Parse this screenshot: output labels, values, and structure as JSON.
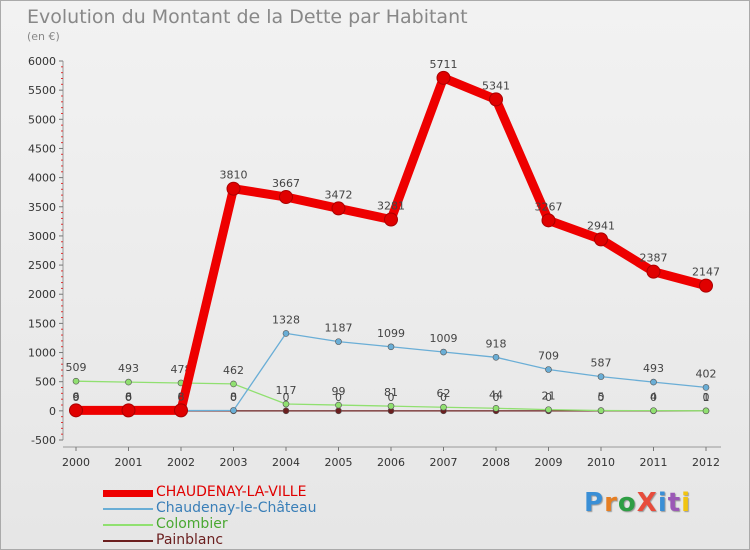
{
  "title": "Evolution du Montant de la Dette par Habitant",
  "subtitle": "(en €)",
  "logo": {
    "text": "ProXiti",
    "colors": [
      "#3a8fd6",
      "#e67e22",
      "#2e9e44",
      "#e74c3c",
      "#3a8fd6",
      "#9b59b6",
      "#f1c40f"
    ]
  },
  "chart_data": {
    "type": "line",
    "title": "Evolution du Montant de la Dette par Habitant",
    "ylabel": "(en €)",
    "xlabel": "",
    "categories": [
      "2000",
      "2001",
      "2002",
      "2003",
      "2004",
      "2005",
      "2006",
      "2007",
      "2008",
      "2009",
      "2010",
      "2011",
      "2012"
    ],
    "ylim": [
      -500,
      6000
    ],
    "yticks": [
      -500,
      0,
      500,
      1000,
      1500,
      2000,
      2500,
      3000,
      3500,
      4000,
      4500,
      5000,
      5500,
      6000
    ],
    "grid": false,
    "legend_position": "bottom-left",
    "series": [
      {
        "name": "Painblanc",
        "color": "#6b1f1f",
        "values": [
          0,
          0,
          0,
          0,
          0,
          0,
          0,
          0,
          0,
          0,
          0,
          0,
          0
        ],
        "labels": [
          "0",
          "0",
          "0",
          "0",
          "0",
          "0",
          "0",
          "0",
          "0",
          "0",
          "0",
          "0",
          "0"
        ]
      },
      {
        "name": "Colombier",
        "color": "#90e070",
        "values": [
          509,
          493,
          478,
          462,
          117,
          99,
          81,
          62,
          44,
          21,
          5,
          4,
          1
        ],
        "labels": [
          "509",
          "493",
          "478",
          "462",
          "117",
          "99",
          "81",
          "62",
          "44",
          "21",
          "5",
          "4",
          "1"
        ]
      },
      {
        "name": "Chaudenay-le-Château",
        "color": "#6aaed6",
        "values": [
          6,
          6,
          6,
          8,
          1328,
          1187,
          1099,
          1009,
          918,
          709,
          587,
          493,
          402
        ],
        "labels": [
          "6",
          "6",
          "6",
          "8",
          "1328",
          "1187",
          "1099",
          "1009",
          "918",
          "709",
          "587",
          "493",
          "402"
        ]
      },
      {
        "name": "CHAUDENAY-LA-VILLE",
        "color": "#ee0000",
        "values": [
          9,
          8,
          8,
          3810,
          3667,
          3472,
          3281,
          5711,
          5341,
          3267,
          2941,
          2387,
          2147
        ],
        "labels": [
          "9",
          "8",
          "8",
          "3810",
          "3667",
          "3472",
          "3281",
          "5711",
          "5341",
          "3267",
          "2941",
          "2387",
          "2147"
        ]
      }
    ],
    "legend_order": [
      "CHAUDENAY-LA-VILLE",
      "Chaudenay-le-Château",
      "Colombier",
      "Painblanc"
    ]
  }
}
